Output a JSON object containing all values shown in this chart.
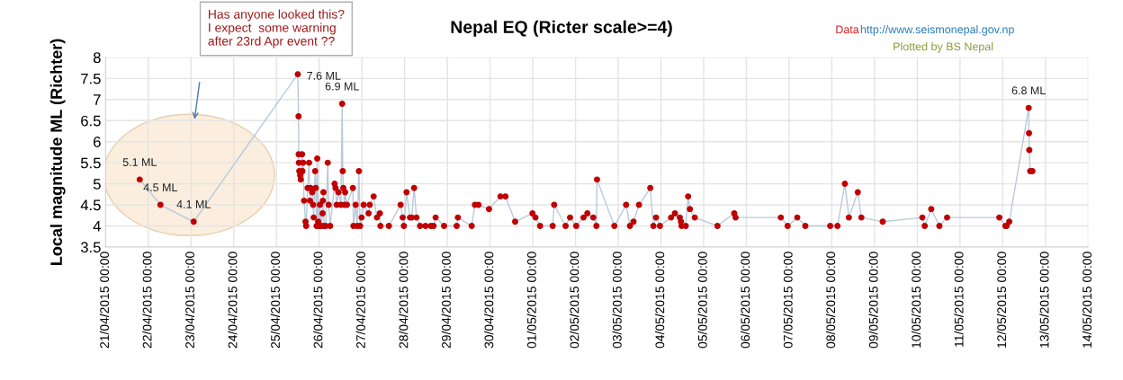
{
  "chart_data": {
    "type": "line",
    "title": "Nepal EQ (Ricter scale>=4)",
    "ylabel": "Local magnitude ML (Richter)",
    "annotations": [
      "Has anyone looked this?\nI expect  some warning\nafter 23rd Apr event ??",
      "Data",
      "http://www.seismonepal.gov.np",
      "Plotted by BS Nepal",
      {
        "text": "5.1 ML",
        "x": "2015-04-21T19:12",
        "y": 5.1
      },
      {
        "text": "4.5 ML",
        "x": "2015-04-22T06:50",
        "y": 4.5
      },
      {
        "text": "4.1 ML",
        "x": "2015-04-23T01:30",
        "y": 4.1
      },
      {
        "text": "7.6 ML",
        "x": "2015-04-25T12:00",
        "y": 7.6
      },
      {
        "text": "6.9 ML",
        "x": "2015-04-26T12:55",
        "y": 6.9
      },
      {
        "text": "6.8 ML",
        "x": "2015-05-12T14:35",
        "y": 6.8
      }
    ],
    "xlim": [
      "2015-04-21",
      "2015-05-14"
    ],
    "xticks": [
      {
        "value": "2015-04-21",
        "label": "21/04/2015 00:00"
      },
      {
        "value": "2015-04-22",
        "label": "22/04/2015 00:00"
      },
      {
        "value": "2015-04-23",
        "label": "23/04/2015 00:00"
      },
      {
        "value": "2015-04-24",
        "label": "24/04/2015 00:00"
      },
      {
        "value": "2015-04-25",
        "label": "25/04/2015 00:00"
      },
      {
        "value": "2015-04-26",
        "label": "26/04/2015 00:00"
      },
      {
        "value": "2015-04-27",
        "label": "27/04/2015 00:00"
      },
      {
        "value": "2015-04-28",
        "label": "28/04/2015 00:00"
      },
      {
        "value": "2015-04-29",
        "label": "29/04/2015 00:00"
      },
      {
        "value": "2015-04-30",
        "label": "30/04/2015 00:00"
      },
      {
        "value": "2015-05-01",
        "label": "01/05/2015 00:00"
      },
      {
        "value": "2015-05-02",
        "label": "02/05/2015 00:00"
      },
      {
        "value": "2015-05-03",
        "label": "03/05/2015 00:00"
      },
      {
        "value": "2015-05-04",
        "label": "04/05/2015 00:00"
      },
      {
        "value": "2015-05-05",
        "label": "05/05/2015 00:00"
      },
      {
        "value": "2015-05-06",
        "label": "06/05/2015 00:00"
      },
      {
        "value": "2015-05-07",
        "label": "07/05/2015 00:00"
      },
      {
        "value": "2015-05-08",
        "label": "08/05/2015 00:00"
      },
      {
        "value": "2015-05-09",
        "label": "09/05/2015 00:00"
      },
      {
        "value": "2015-05-10",
        "label": "10/05/2015 00:00"
      },
      {
        "value": "2015-05-11",
        "label": "11/05/2015 00:00"
      },
      {
        "value": "2015-05-12",
        "label": "12/05/2015 00:00"
      },
      {
        "value": "2015-05-13",
        "label": "13/05/2015 00:00"
      },
      {
        "value": "2015-05-14",
        "label": "14/05/2015 00:00"
      }
    ],
    "ylim": [
      3.5,
      8
    ],
    "yticks": [
      3.5,
      4,
      4.5,
      5,
      5.5,
      6,
      6.5,
      7,
      7.5,
      8
    ],
    "grid": true,
    "marker": "circle",
    "line_style": "solid",
    "series": [
      {
        "color": "#b9c9dc",
        "colors": [
          "#c00000",
          "#c00000",
          "#c00000",
          "#c00000",
          "#c00000",
          "#c00000",
          "#c00000",
          "#c00000",
          "#c00000",
          "#c00000",
          "#c00000",
          "#c00000",
          "#c00000",
          "#c00000",
          "#c00000",
          "#c00000",
          "#c00000",
          "#c00000",
          "#c00000",
          "#c00000",
          "#c00000",
          "#c00000",
          "#c00000",
          "#c00000",
          "#c00000",
          "#c00000",
          "#c00000",
          "#c00000",
          "#c00000",
          "#c00000",
          "#c00000",
          "#c00000",
          "#c00000",
          "#c00000",
          "#c00000",
          "#c00000",
          "#c00000",
          "#c00000",
          "#c00000",
          "#c00000",
          "#c00000",
          "#c00000",
          "#c00000",
          "#c00000",
          "#c00000",
          "#c00000",
          "#c00000",
          "#c00000",
          "#c00000",
          "#c00000",
          "#c00000",
          "#c00000",
          "#c00000",
          "#c00000",
          "#c00000",
          "#c00000",
          "#c00000",
          "#c00000",
          "#c00000",
          "#c00000",
          "#c00000",
          "#c00000",
          "#c00000",
          "#c00000",
          "#c00000",
          "#c00000",
          "#c00000",
          "#c00000",
          "#c00000",
          "#c00000",
          "#c00000",
          "#c00000",
          "#c00000",
          "#c00000",
          "#c00000",
          "#c00000",
          "#c00000",
          "#c00000",
          "#c00000",
          "#c00000",
          "#c00000",
          "#c00000",
          "#c00000",
          "#c00000",
          "#c00000",
          "#c00000",
          "#c00000",
          "#c00000",
          "#c00000",
          "#c00000",
          "#c00000",
          "#c00000",
          "#c00000",
          "#c00000",
          "#c00000",
          "#c00000",
          "#c00000",
          "#c00000",
          "#c00000",
          "#c00000",
          "#c00000",
          "#c00000",
          "#c00000",
          "#c00000",
          "#c00000",
          "#c00000",
          "#c00000",
          "#c00000",
          "#c00000",
          "#c00000",
          "#c00000",
          "#c00000",
          "#c00000",
          "#c00000",
          "#c00000",
          "#c00000",
          "#c00000",
          "#c00000",
          "#c00000",
          "#c00000",
          "#c00000",
          "#c00000",
          "#c00000",
          "#c00000",
          "#c00000",
          "#c00000",
          "#c00000",
          "#c00000",
          "#c00000",
          "#c00000",
          "#c00000",
          "#c00000",
          "#c00000",
          "#c00000",
          "#c00000",
          "#c00000",
          "#c00000",
          "#c00000",
          "#c00000",
          "#c00000",
          "#c00000",
          "#c00000",
          "#c00000",
          "#c00000",
          "#c00000",
          "#c00000",
          "#c00000"
        ],
        "x": [
          "2015-04-21T19:12",
          "2015-04-22T06:50",
          "2015-04-23T01:30",
          "2015-04-25T12:00",
          "2015-04-25T12:25",
          "2015-04-25T12:30",
          "2015-04-25T12:35",
          "2015-04-25T12:50",
          "2015-04-25T13:20",
          "2015-04-25T13:40",
          "2015-04-25T14:25",
          "2015-04-25T14:35",
          "2015-04-25T15:00",
          "2015-04-25T15:30",
          "2015-04-25T16:20",
          "2015-04-25T16:40",
          "2015-04-25T17:30",
          "2015-04-25T18:20",
          "2015-04-25T18:50",
          "2015-04-25T19:10",
          "2015-04-25T20:05",
          "2015-04-25T20:35",
          "2015-04-25T20:55",
          "2015-04-25T21:45",
          "2015-04-25T22:05",
          "2015-04-25T22:35",
          "2015-04-25T22:55",
          "2015-04-25T23:25",
          "2015-04-25T23:55",
          "2015-04-26T00:25",
          "2015-04-26T01:05",
          "2015-04-26T01:55",
          "2015-04-26T02:05",
          "2015-04-26T02:25",
          "2015-04-26T02:45",
          "2015-04-26T03:40",
          "2015-04-26T04:50",
          "2015-04-26T05:20",
          "2015-04-26T06:10",
          "2015-04-26T08:40",
          "2015-04-26T09:10",
          "2015-04-26T09:50",
          "2015-04-26T10:50",
          "2015-04-26T12:15",
          "2015-04-26T12:55",
          "2015-04-26T13:15",
          "2015-04-26T13:35",
          "2015-04-26T14:15",
          "2015-04-26T14:35",
          "2015-04-26T15:35",
          "2015-04-26T18:55",
          "2015-04-26T19:15",
          "2015-04-26T20:30",
          "2015-04-26T21:20",
          "2015-04-26T22:20",
          "2015-04-26T23:00",
          "2015-04-26T23:50",
          "2015-04-27T01:00",
          "2015-04-27T03:45",
          "2015-04-27T04:25",
          "2015-04-27T06:35",
          "2015-04-27T08:25",
          "2015-04-27T10:05",
          "2015-04-27T10:25",
          "2015-04-27T15:10",
          "2015-04-27T21:45",
          "2015-04-27T22:55",
          "2015-04-27T23:35",
          "2015-04-28T01:05",
          "2015-04-28T03:00",
          "2015-04-28T04:00",
          "2015-04-28T05:20",
          "2015-04-28T06:40",
          "2015-04-28T08:40",
          "2015-04-28T11:45",
          "2015-04-28T14:45",
          "2015-04-28T16:15",
          "2015-04-28T17:25",
          "2015-04-28T22:10",
          "2015-04-29T05:15",
          "2015-04-29T05:55",
          "2015-04-29T13:40",
          "2015-04-29T15:30",
          "2015-04-29T17:30",
          "2015-04-29T23:25",
          "2015-04-30T05:50",
          "2015-04-30T08:40",
          "2015-04-30T14:05",
          "2015-04-30T23:50",
          "2015-05-01T01:30",
          "2015-05-01T04:05",
          "2015-05-01T11:10",
          "2015-05-01T12:00",
          "2015-05-01T18:25",
          "2015-05-01T20:55",
          "2015-05-02T00:25",
          "2015-05-02T04:30",
          "2015-05-02T06:40",
          "2015-05-02T10:00",
          "2015-05-02T11:45",
          "2015-05-02T12:05",
          "2015-05-02T21:50",
          "2015-05-03T04:25",
          "2015-05-03T06:35",
          "2015-05-03T08:35",
          "2015-05-03T11:40",
          "2015-05-03T18:00",
          "2015-05-03T19:45",
          "2015-05-03T21:15",
          "2015-05-03T23:25",
          "2015-05-04T05:40",
          "2015-05-04T07:50",
          "2015-05-04T10:35",
          "2015-05-04T11:15",
          "2015-05-04T11:35",
          "2015-05-04T13:55",
          "2015-05-04T15:15",
          "2015-05-04T16:15",
          "2015-05-04T19:00",
          "2015-05-05T07:45",
          "2015-05-05T17:10",
          "2015-05-05T17:55",
          "2015-05-06T19:20",
          "2015-05-06T23:10",
          "2015-05-07T04:35",
          "2015-05-07T09:05",
          "2015-05-07T23:05",
          "2015-05-08T03:10",
          "2015-05-08T07:20",
          "2015-05-08T09:35",
          "2015-05-08T14:35",
          "2015-05-08T16:35",
          "2015-05-09T04:35",
          "2015-05-10T02:50",
          "2015-05-10T04:10",
          "2015-05-10T07:50",
          "2015-05-10T12:25",
          "2015-05-10T16:45",
          "2015-05-11T22:05",
          "2015-05-12T01:30",
          "2015-05-12T02:10",
          "2015-05-12T03:40",
          "2015-05-12T14:35",
          "2015-05-12T14:45",
          "2015-05-12T14:55",
          "2015-05-12T15:25",
          "2015-05-12T16:40"
        ],
        "values": [
          5.1,
          4.5,
          4.1,
          7.6,
          6.6,
          5.7,
          5.5,
          5.3,
          5.2,
          5.1,
          5.7,
          5.3,
          5.5,
          4.6,
          4.1,
          4.0,
          4.9,
          5.5,
          4.6,
          4.9,
          4.8,
          4.5,
          4.2,
          5.3,
          4.9,
          4.0,
          5.6,
          4.1,
          4.0,
          4.5,
          4.0,
          4.3,
          4.6,
          4.8,
          4.0,
          4.0,
          5.5,
          4.5,
          4.0,
          5.0,
          4.9,
          4.5,
          4.8,
          4.5,
          6.9,
          5.3,
          4.9,
          4.5,
          4.8,
          4.5,
          4.9,
          4.0,
          4.5,
          4.0,
          5.3,
          4.0,
          4.2,
          4.5,
          4.3,
          4.5,
          4.7,
          4.2,
          4.3,
          4.0,
          4.0,
          4.5,
          4.2,
          4.0,
          4.8,
          4.2,
          4.2,
          4.9,
          4.2,
          4.0,
          4.0,
          4.0,
          4.0,
          4.2,
          4.0,
          4.0,
          4.2,
          4.0,
          4.5,
          4.5,
          4.4,
          4.7,
          4.7,
          4.1,
          4.3,
          4.2,
          4.0,
          4.0,
          4.5,
          4.0,
          4.2,
          4.0,
          4.2,
          4.3,
          4.2,
          4.0,
          5.1,
          4.0,
          4.5,
          4.0,
          4.1,
          4.5,
          4.9,
          4.0,
          4.2,
          4.0,
          4.2,
          4.3,
          4.2,
          4.1,
          4.0,
          4.0,
          4.7,
          4.4,
          4.2,
          4.0,
          4.3,
          4.2,
          4.2,
          4.0,
          4.2,
          4.0,
          4.0,
          4.0,
          5.0,
          4.2,
          4.8,
          4.2,
          4.1,
          4.2,
          4.0,
          4.4,
          4.0,
          4.2,
          4.2,
          4.0,
          4.0,
          4.1,
          6.8,
          6.2,
          5.8,
          5.3,
          5.3
        ]
      }
    ]
  }
}
